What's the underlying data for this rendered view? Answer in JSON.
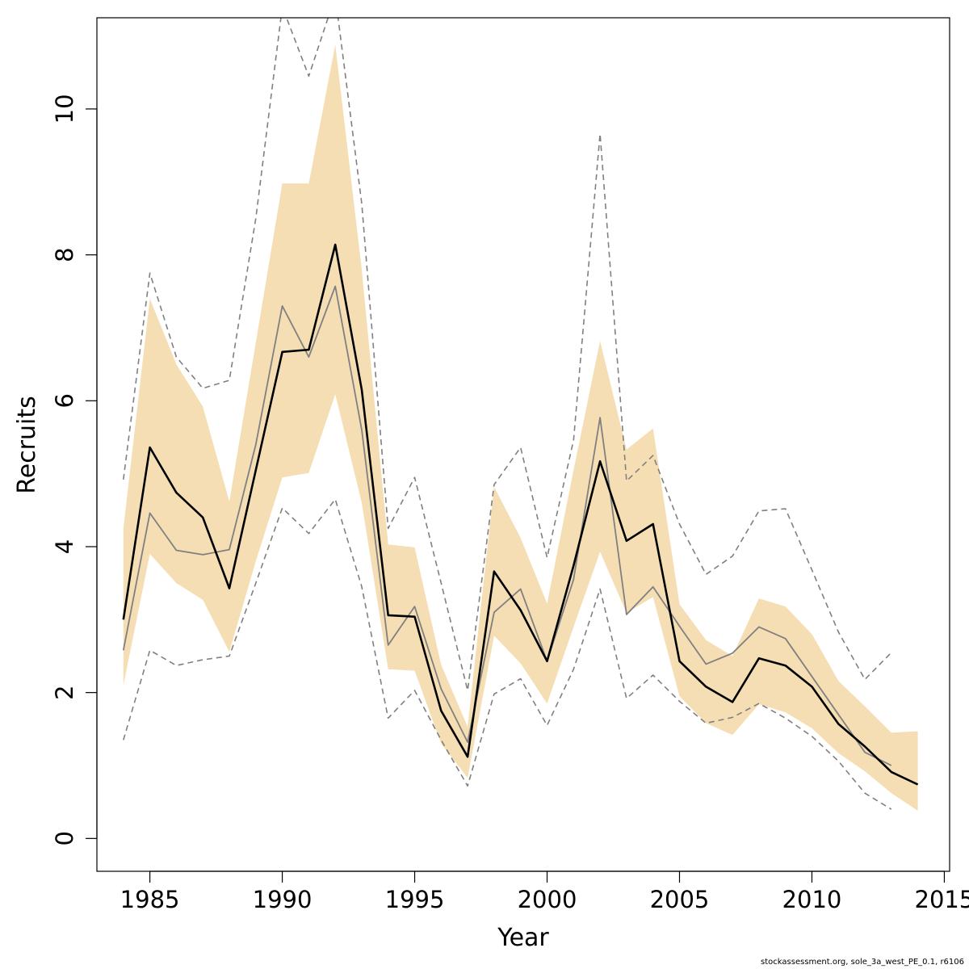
{
  "chart_data": {
    "type": "line",
    "xlabel": "Year",
    "ylabel": "Recruits",
    "xlim": [
      1983,
      2015.2
    ],
    "ylim": [
      -0.45,
      11.25
    ],
    "x_ticks": [
      1985,
      1990,
      1995,
      2000,
      2005,
      2010,
      2015
    ],
    "y_ticks": [
      0,
      2,
      4,
      6,
      8,
      10
    ],
    "grid": false,
    "colors": {
      "band": "#f5deb3",
      "estimate": "#000000",
      "previous_estimate": "#808080",
      "previous_bounds": "#808080"
    },
    "series": [
      {
        "role": "confidence_band",
        "x": [
          1984,
          1985,
          1986,
          1987,
          1988,
          1989,
          1990,
          1991,
          1992,
          1993,
          1994,
          1995,
          1996,
          1997,
          1998,
          1999,
          2000,
          2001,
          2002,
          2003,
          2004,
          2005,
          2006,
          2007,
          2008,
          2009,
          2010,
          2011,
          2012,
          2013,
          2014
        ],
        "lower": [
          2.1,
          3.9,
          3.5,
          3.27,
          2.56,
          3.8,
          4.95,
          5.01,
          6.09,
          4.6,
          2.32,
          2.3,
          1.3,
          0.83,
          2.78,
          2.4,
          1.85,
          2.9,
          3.93,
          3.09,
          3.31,
          1.95,
          1.58,
          1.42,
          1.84,
          1.73,
          1.51,
          1.17,
          0.92,
          0.62,
          0.38
        ],
        "upper": [
          4.25,
          7.4,
          6.5,
          5.92,
          4.62,
          6.8,
          8.98,
          8.98,
          10.88,
          7.8,
          4.03,
          3.99,
          2.38,
          1.53,
          4.82,
          4.12,
          3.22,
          5.05,
          6.82,
          5.33,
          5.62,
          3.21,
          2.72,
          2.5,
          3.29,
          3.18,
          2.8,
          2.16,
          1.81,
          1.45,
          1.47
        ]
      },
      {
        "role": "estimate",
        "x": [
          1984,
          1985,
          1986,
          1987,
          1988,
          1989,
          1990,
          1991,
          1992,
          1993,
          1994,
          1995,
          1996,
          1997,
          1998,
          1999,
          2000,
          2001,
          2002,
          2003,
          2004,
          2005,
          2006,
          2007,
          2008,
          2009,
          2010,
          2011,
          2012,
          2013,
          2014
        ],
        "values": [
          3.0,
          5.36,
          4.74,
          4.4,
          3.43,
          5.05,
          6.67,
          6.7,
          8.14,
          6.15,
          3.06,
          3.04,
          1.75,
          1.12,
          3.66,
          3.13,
          2.43,
          3.74,
          5.17,
          4.08,
          4.31,
          2.43,
          2.08,
          1.87,
          2.47,
          2.37,
          2.08,
          1.57,
          1.26,
          0.91,
          0.74
        ]
      },
      {
        "role": "previous_estimate",
        "x": [
          1984,
          1985,
          1986,
          1987,
          1988,
          1989,
          1990,
          1991,
          1992,
          1993,
          1994,
          1995,
          1996,
          1997,
          1998,
          1999,
          2000,
          2001,
          2002,
          2003,
          2004,
          2005,
          2006,
          2007,
          2008,
          2009,
          2010,
          2011,
          2012,
          2013
        ],
        "values": [
          2.58,
          4.46,
          3.95,
          3.89,
          3.96,
          5.4,
          7.3,
          6.6,
          7.57,
          5.6,
          2.65,
          3.18,
          2.05,
          1.32,
          3.1,
          3.42,
          2.43,
          3.55,
          5.77,
          3.07,
          3.45,
          2.91,
          2.39,
          2.54,
          2.9,
          2.74,
          2.22,
          1.7,
          1.18,
          1.0
        ]
      },
      {
        "role": "previous_upper",
        "x": [
          1984,
          1985,
          1986,
          1987,
          1988,
          1989,
          1990,
          1991,
          1992,
          1993,
          1994,
          1995,
          1996,
          1997,
          1998,
          1999,
          2000,
          2001,
          2002,
          2003,
          2004,
          2005,
          2006,
          2007,
          2008,
          2009,
          2010,
          2011,
          2012,
          2013
        ],
        "values": [
          4.92,
          7.75,
          6.6,
          6.17,
          6.28,
          8.5,
          11.4,
          10.45,
          11.55,
          8.7,
          4.25,
          4.95,
          3.5,
          2.03,
          4.85,
          5.36,
          3.85,
          5.46,
          9.66,
          4.9,
          5.25,
          4.31,
          3.62,
          3.87,
          4.49,
          4.52,
          3.68,
          2.83,
          2.18,
          2.55
        ]
      },
      {
        "role": "previous_lower",
        "x": [
          1984,
          1985,
          1986,
          1987,
          1988,
          1989,
          1990,
          1991,
          1992,
          1993,
          1994,
          1995,
          1996,
          1997,
          1998,
          1999,
          2000,
          2001,
          2002,
          2003,
          2004,
          2005,
          2006,
          2007,
          2008,
          2009,
          2010,
          2011,
          2012,
          2013
        ],
        "values": [
          1.35,
          2.58,
          2.37,
          2.45,
          2.5,
          3.5,
          4.53,
          4.18,
          4.65,
          3.45,
          1.65,
          2.03,
          1.35,
          0.72,
          1.98,
          2.19,
          1.55,
          2.32,
          3.42,
          1.92,
          2.24,
          1.88,
          1.58,
          1.66,
          1.85,
          1.65,
          1.4,
          1.06,
          0.62,
          0.4
        ]
      }
    ]
  },
  "footer": "stockassessment.org, sole_3a_west_PE_0.1, r6106"
}
